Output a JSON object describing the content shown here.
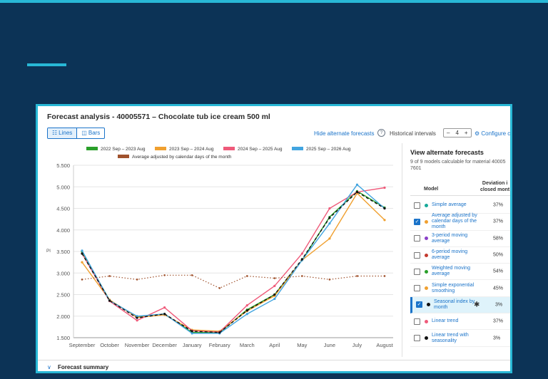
{
  "panel": {
    "title": "Forecast analysis - 40005571 – Chocolate tub ice cream 500 ml",
    "view_lines": "Lines",
    "view_bars": "Bars",
    "hide_alternate": "Hide alternate forecasts",
    "help": "?",
    "historical_label": "Historical intervals",
    "stepper_minus": "–",
    "stepper_value": "4",
    "stepper_plus": "+",
    "configure": "⚙ Configure c",
    "summary": "Forecast summary",
    "summary_chevron": "∨"
  },
  "side": {
    "title": "View alternate forecasts",
    "subtitle_line1": "9 of 9 models calculable for material 40005",
    "subtitle_line2": "7601",
    "col_model": "Model",
    "col_deviation_line1": "Deviation i",
    "col_deviation_line2": "closed mont",
    "models": [
      {
        "name": "Simple average",
        "pct": "37%",
        "checked": false,
        "color": "#17a99a"
      },
      {
        "name": "Average adjusted by calendar days of the month",
        "pct": "37%",
        "checked": true,
        "color": "#f0a030"
      },
      {
        "name": "3-period moving average",
        "pct": "58%",
        "checked": false,
        "color": "#8a3fc8"
      },
      {
        "name": "6-period moving average",
        "pct": "50%",
        "checked": false,
        "color": "#c43a2e"
      },
      {
        "name": "Weighted moving average",
        "pct": "54%",
        "checked": false,
        "color": "#2aa02a"
      },
      {
        "name": "Simple exponential smoothing",
        "pct": "45%",
        "checked": false,
        "color": "#f0a030"
      },
      {
        "name": "Seasonal index by month",
        "pct": "3%",
        "checked": true,
        "color": "#111111",
        "selected": true,
        "star": "✱"
      },
      {
        "name": "Linear trend",
        "pct": "37%",
        "checked": false,
        "color": "#ef5a7a"
      },
      {
        "name": "Linear trend with seasonality",
        "pct": "3%",
        "checked": false,
        "color": "#111111"
      }
    ]
  },
  "chart_data": {
    "type": "line",
    "categories": [
      "September",
      "October",
      "November",
      "December",
      "January",
      "February",
      "March",
      "April",
      "May",
      "June",
      "July",
      "August"
    ],
    "ylabel": "Pl",
    "ylim": [
      1500,
      5500
    ],
    "yticks": [
      "1.500",
      "2.000",
      "2.500",
      "3.000",
      "3.500",
      "4.000",
      "4.500",
      "5.000",
      "5.500"
    ],
    "grid": true,
    "legend_position": "top",
    "series": [
      {
        "name": "2022 Sep – 2023 Aug",
        "color": "#2aa02a",
        "style": "solid",
        "values": [
          3500,
          2370,
          1980,
          2050,
          1620,
          1620,
          2150,
          2500,
          3300,
          4300,
          4900,
          4520
        ]
      },
      {
        "name": "2023 Sep – 2024 Aug",
        "color": "#f0a030",
        "style": "solid",
        "values": [
          3250,
          2380,
          1970,
          2030,
          1680,
          1650,
          2120,
          2470,
          3300,
          3800,
          4850,
          4230
        ]
      },
      {
        "name": "2024 Sep – 2025 Aug",
        "color": "#ef5a7a",
        "style": "solid",
        "values": [
          3450,
          2350,
          1900,
          2200,
          1660,
          1630,
          2250,
          2700,
          3450,
          4500,
          4880,
          4980
        ]
      },
      {
        "name": "2025 Sep – 2026 Aug",
        "color": "#42a5e0",
        "style": "solid",
        "values": [
          3520,
          2360,
          2000,
          2050,
          1600,
          1600,
          2050,
          2400,
          3300,
          4150,
          5050,
          4500
        ]
      },
      {
        "name": "Average adjusted by calendar days of the month",
        "color": "#a0522d",
        "style": "dotted",
        "values": [
          2850,
          2930,
          2850,
          2950,
          2950,
          2650,
          2930,
          2880,
          2930,
          2850,
          2930,
          2930
        ]
      },
      {
        "name": "",
        "color": "#111111",
        "style": "dashed",
        "values": [
          3450,
          2360,
          1960,
          2050,
          1650,
          1620,
          2130,
          2500,
          3320,
          4280,
          4880,
          4500
        ]
      }
    ]
  }
}
